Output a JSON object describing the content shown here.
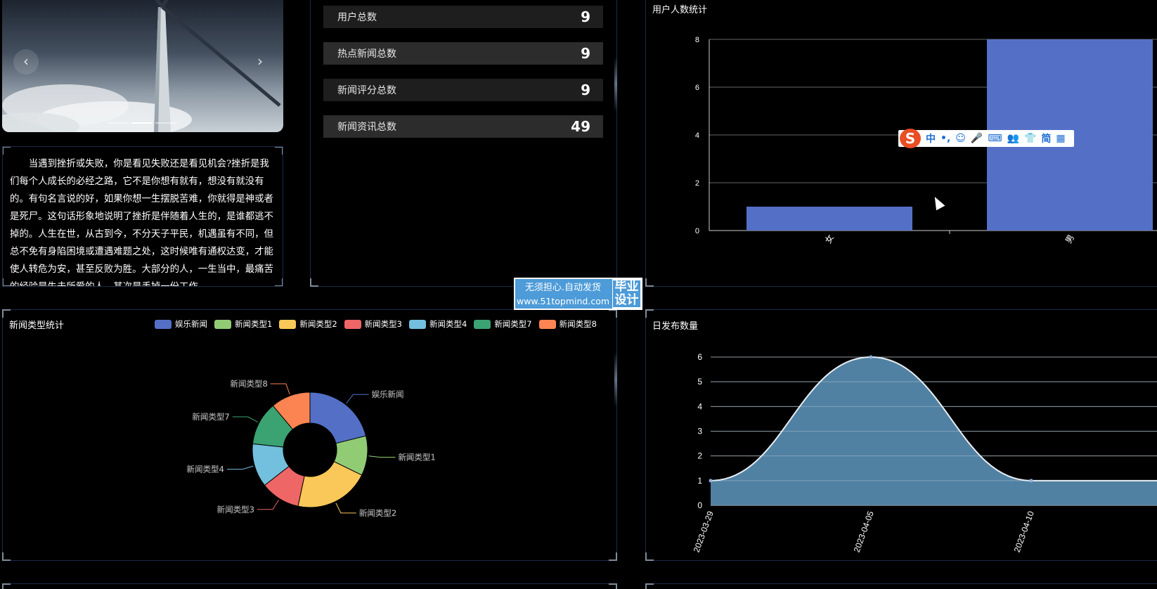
{
  "carousel": {
    "prev_icon": "‹",
    "next_icon": "›",
    "dots": 3,
    "active_dot": 2
  },
  "quote": {
    "text": "当遇到挫折或失败，你是看见失败还是看见机会?挫折是我们每个人成长的必经之路，它不是你想有就有，想没有就没有的。有句名言说的好，如果你想一生摆脱苦难，你就得是神或者是死尸。这句话形象地说明了挫折是伴随着人生的，是谁都逃不掉的。人生在世，从古到今，不分天子平民，机遇虽有不同，但总不免有身陷困境或遭遇难题之处，这时候唯有通权达变，才能使人转危为安，甚至反败为胜。大部分的人，一生当中，最痛苦的经验是失去所爱的人，其次是丢掉一份工作。"
  },
  "stats": [
    {
      "label": "用户总数",
      "value": "9"
    },
    {
      "label": "热点新闻总数",
      "value": "9"
    },
    {
      "label": "新闻评分总数",
      "value": "9"
    },
    {
      "label": "新闻资讯总数",
      "value": "49"
    }
  ],
  "user_chart": {
    "title": "用户人数统计"
  },
  "news_types": {
    "title": "新闻类型统计"
  },
  "daily": {
    "title": "日发布数量"
  },
  "watermark": {
    "line1": "无须担心.自动发货",
    "line2": "www.51topmind.com",
    "badge1": "毕业",
    "badge2": "设计"
  },
  "ime": {
    "items": [
      "中",
      "•,",
      "☺",
      "🎤",
      "⌨",
      "👥",
      "👕",
      "简",
      "▦"
    ]
  },
  "colors": {
    "bar": "#5470c6",
    "area": "#5a8fb4",
    "pie": [
      "#5470c6",
      "#91cc75",
      "#fac858",
      "#ee6666",
      "#73c0de",
      "#3ba272",
      "#fc8452"
    ]
  },
  "chart_data": [
    {
      "type": "bar",
      "title": "用户人数统计",
      "categories": [
        "女",
        "男"
      ],
      "values": [
        1,
        8
      ],
      "ylim": [
        0,
        8
      ],
      "yticks": [
        0,
        2,
        4,
        6,
        8
      ],
      "grid": true
    },
    {
      "type": "pie",
      "title": "新闻类型统计",
      "donut": true,
      "legend_position": "top-right",
      "labels": [
        "娱乐新闻",
        "新闻类型1",
        "新闻类型2",
        "新闻类型3",
        "新闻类型4",
        "新闻类型7",
        "新闻类型8"
      ],
      "values": [
        19,
        10,
        19,
        10,
        11,
        11,
        10
      ]
    },
    {
      "type": "area",
      "title": "日发布数量",
      "x": [
        "2023-03-29",
        "2023-04-05",
        "2023-04-10"
      ],
      "values": [
        1,
        6,
        1
      ],
      "ylim": [
        0,
        6
      ],
      "yticks": [
        0,
        1,
        2,
        3,
        4,
        5,
        6
      ],
      "grid": true,
      "smooth": true
    }
  ]
}
